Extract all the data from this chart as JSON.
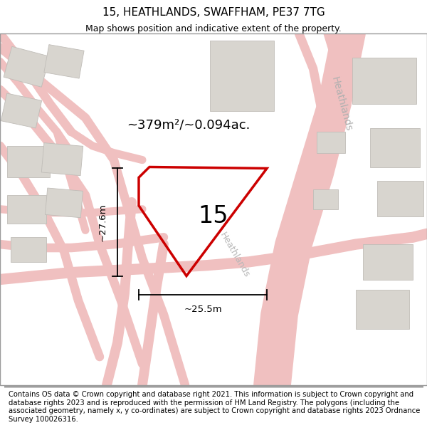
{
  "title": "15, HEATHLANDS, SWAFFHAM, PE37 7TG",
  "subtitle": "Map shows position and indicative extent of the property.",
  "footnote": "Contains OS data © Crown copyright and database right 2021. This information is subject to Crown copyright and database rights 2023 and is reproduced with the permission of HM Land Registry. The polygons (including the associated geometry, namely x, y co-ordinates) are subject to Crown copyright and database rights 2023 Ordnance Survey 100026316.",
  "map_bg": "#f5f3f0",
  "street_color": "#f0c0c0",
  "property_edge": "#cc0000",
  "block_fill": "#d8d5cf",
  "block_edge": "#c0bdb8",
  "road_label": "Heathlands",
  "area_text": "~379m²/~0.094ac.",
  "plot_number": "15",
  "dim_h": "~27.6m",
  "dim_w": "~25.5m",
  "title_fontsize": 11,
  "subtitle_fontsize": 9,
  "footnote_fontsize": 7.2,
  "map_border_color": "#888888",
  "road_lw": 9,
  "road_outline_color": "#e8a0a0",
  "dim_color": "black",
  "road_label_color": "#aaaaaa",
  "road_label2": "Heathlands"
}
